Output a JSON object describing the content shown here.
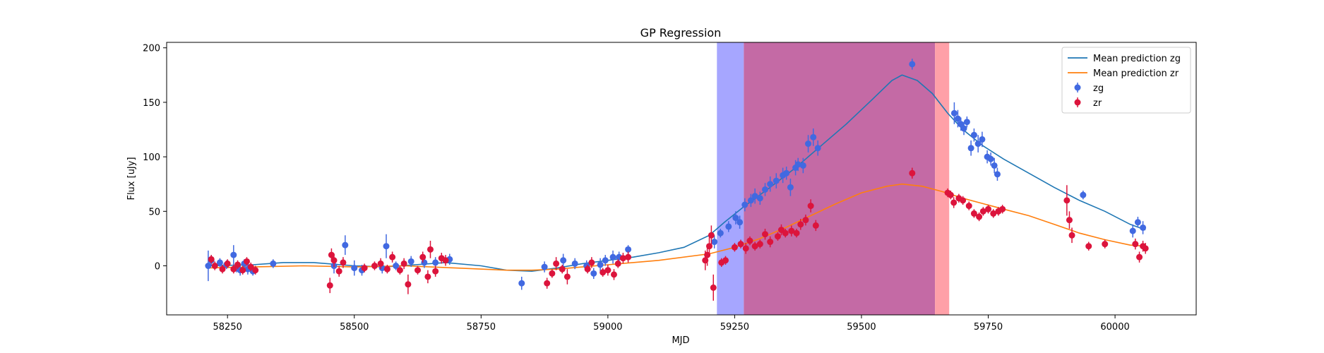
{
  "chart_data": {
    "type": "scatter",
    "title": "GP Regression",
    "xlabel": "MJD",
    "ylabel": "Flux [uJy]",
    "xlim": [
      58130,
      60160
    ],
    "ylim": [
      -45,
      205
    ],
    "xticks": [
      58250,
      58500,
      58750,
      59000,
      59250,
      59500,
      59750,
      60000
    ],
    "yticks": [
      0,
      50,
      100,
      150,
      200
    ],
    "grid": false,
    "legend_position": "top-right",
    "colors": {
      "zg_points": "#4169e1",
      "zr_points": "#dc143c",
      "zg_mean": "#1f77b4",
      "zr_mean": "#ff7f0e",
      "band_blue": "#a6a6ff",
      "band_purple": "#c46aa5",
      "band_red": "#ffa0a8"
    },
    "shaded_regions": [
      {
        "x0": 59215,
        "x1": 59268,
        "color": "#a6a6ff"
      },
      {
        "x0": 59268,
        "x1": 59645,
        "color": "#c46aa5"
      },
      {
        "x0": 59645,
        "x1": 59673,
        "color": "#ffa0a8"
      }
    ],
    "legend": [
      {
        "label": "Mean prediction zg",
        "kind": "line",
        "color": "#1f77b4"
      },
      {
        "label": "Mean prediction zr",
        "kind": "line",
        "color": "#ff7f0e"
      },
      {
        "label": "zg",
        "kind": "errorbar",
        "color": "#4169e1"
      },
      {
        "label": "zr",
        "kind": "errorbar",
        "color": "#dc143c"
      }
    ],
    "series": [
      {
        "name": "Mean prediction zg",
        "kind": "line",
        "color": "#1f77b4",
        "x": [
          58210,
          58300,
          58360,
          58420,
          58500,
          58560,
          58620,
          58680,
          58750,
          58800,
          58850,
          58900,
          58950,
          59000,
          59050,
          59100,
          59150,
          59200,
          59230,
          59270,
          59320,
          59370,
          59420,
          59470,
          59520,
          59560,
          59580,
          59610,
          59640,
          59670,
          59700,
          59740,
          59780,
          59830,
          59880,
          59930,
          59980,
          60030,
          60060
        ],
        "y": [
          0,
          1,
          3,
          3,
          0,
          -1,
          1,
          3,
          0,
          -4,
          -5,
          -2,
          2,
          5,
          8,
          12,
          17,
          28,
          40,
          55,
          72,
          90,
          110,
          130,
          152,
          170,
          175,
          170,
          158,
          140,
          125,
          110,
          98,
          85,
          72,
          60,
          50,
          38,
          33
        ]
      },
      {
        "name": "Mean prediction zr",
        "kind": "line",
        "color": "#ff7f0e",
        "x": [
          58210,
          58300,
          58400,
          58500,
          58600,
          58700,
          58800,
          58850,
          58900,
          58950,
          59000,
          59100,
          59200,
          59250,
          59300,
          59350,
          59400,
          59450,
          59500,
          59550,
          59580,
          59620,
          59660,
          59700,
          59740,
          59780,
          59830,
          59880,
          59930,
          59980,
          60030,
          60060
        ],
        "y": [
          -2,
          -1,
          0,
          -1,
          0,
          -2,
          -4,
          -4,
          -3,
          -1,
          1,
          5,
          11,
          17,
          25,
          35,
          46,
          57,
          67,
          73,
          75,
          73,
          68,
          62,
          57,
          52,
          46,
          38,
          30,
          24,
          19,
          18
        ]
      },
      {
        "name": "zg",
        "kind": "errorbar",
        "color": "#4169e1",
        "x": [
          58212,
          58218,
          58235,
          58248,
          58262,
          58268,
          58275,
          58283,
          58290,
          58300,
          58340,
          58460,
          58482,
          58500,
          58515,
          58555,
          58563,
          58582,
          58612,
          58638,
          58660,
          58688,
          58830,
          58875,
          58912,
          58935,
          58958,
          58972,
          58985,
          58995,
          59010,
          59022,
          59040,
          59210,
          59222,
          59238,
          59252,
          59260,
          59270,
          59282,
          59290,
          59300,
          59310,
          59320,
          59332,
          59345,
          59352,
          59360,
          59370,
          59375,
          59385,
          59395,
          59405,
          59414,
          59600,
          59683,
          59690,
          59696,
          59702,
          59708,
          59716,
          59722,
          59730,
          59738,
          59748,
          59755,
          59762,
          59768,
          59937,
          60035,
          60045,
          60055
        ],
        "y": [
          0,
          5,
          3,
          1,
          10,
          -2,
          -4,
          2,
          -3,
          -5,
          2,
          0,
          19,
          -2,
          -4,
          -2,
          18,
          0,
          4,
          3,
          3,
          6,
          -16,
          -1,
          5,
          2,
          0,
          -7,
          1,
          5,
          8,
          8,
          15,
          22,
          30,
          36,
          44,
          40,
          56,
          60,
          64,
          62,
          70,
          75,
          78,
          83,
          85,
          72,
          90,
          93,
          92,
          112,
          118,
          108,
          185,
          140,
          135,
          130,
          126,
          132,
          108,
          120,
          112,
          116,
          100,
          98,
          92,
          84,
          65,
          32,
          40,
          35
        ],
        "err": [
          14,
          5,
          4,
          4,
          9,
          4,
          5,
          4,
          5,
          4,
          4,
          7,
          9,
          7,
          5,
          5,
          11,
          4,
          5,
          5,
          5,
          5,
          6,
          5,
          6,
          5,
          5,
          5,
          6,
          5,
          6,
          5,
          4,
          6,
          4,
          5,
          6,
          6,
          6,
          6,
          7,
          6,
          6,
          7,
          7,
          7,
          6,
          8,
          7,
          6,
          7,
          8,
          8,
          7,
          5,
          10,
          8,
          6,
          6,
          5,
          7,
          6,
          8,
          7,
          6,
          6,
          7,
          6,
          4,
          6,
          5,
          6
        ]
      },
      {
        "name": "zr",
        "kind": "errorbar",
        "color": "#dc143c",
        "x": [
          58218,
          58225,
          58240,
          58250,
          58262,
          58270,
          58280,
          58288,
          58296,
          58305,
          58452,
          58455,
          58460,
          58470,
          58478,
          58520,
          58540,
          58552,
          58565,
          58575,
          58590,
          58598,
          58606,
          58625,
          58635,
          58645,
          58650,
          58660,
          58672,
          58680,
          58880,
          58890,
          58898,
          58910,
          58920,
          58960,
          58968,
          58990,
          59000,
          59012,
          59020,
          59030,
          59040,
          59192,
          59196,
          59200,
          59204,
          59208,
          59224,
          59232,
          59250,
          59262,
          59272,
          59280,
          59290,
          59300,
          59310,
          59320,
          59335,
          59342,
          59350,
          59362,
          59372,
          59380,
          59390,
          59400,
          59410,
          59600,
          59670,
          59676,
          59682,
          59692,
          59700,
          59712,
          59722,
          59732,
          59740,
          59750,
          59760,
          59770,
          59778,
          59905,
          59910,
          59915,
          59948,
          59980,
          60040,
          60048,
          60055,
          60060
        ],
        "y": [
          6,
          0,
          -3,
          2,
          -3,
          1,
          -4,
          4,
          -1,
          -4,
          -18,
          10,
          5,
          -5,
          3,
          -2,
          0,
          2,
          -3,
          8,
          -4,
          2,
          -17,
          -4,
          8,
          -10,
          15,
          -5,
          7,
          5,
          -16,
          -7,
          2,
          -3,
          -10,
          -3,
          3,
          -6,
          -4,
          -8,
          2,
          7,
          8,
          5,
          10,
          18,
          28,
          -20,
          3,
          5,
          17,
          20,
          16,
          23,
          18,
          20,
          29,
          22,
          27,
          33,
          30,
          32,
          30,
          38,
          42,
          55,
          37,
          85,
          67,
          65,
          58,
          62,
          60,
          55,
          48,
          45,
          50,
          52,
          48,
          50,
          52,
          60,
          42,
          28,
          18,
          20,
          20,
          8,
          18,
          16
        ],
        "err": [
          4,
          4,
          4,
          4,
          4,
          4,
          4,
          4,
          4,
          4,
          7,
          6,
          6,
          5,
          5,
          4,
          4,
          5,
          4,
          5,
          4,
          5,
          9,
          4,
          5,
          6,
          8,
          5,
          5,
          5,
          5,
          4,
          6,
          4,
          7,
          4,
          5,
          4,
          5,
          5,
          4,
          5,
          5,
          9,
          10,
          8,
          9,
          12,
          4,
          4,
          4,
          4,
          5,
          4,
          4,
          4,
          5,
          5,
          4,
          5,
          4,
          5,
          4,
          5,
          5,
          6,
          5,
          5,
          4,
          4,
          5,
          4,
          4,
          4,
          4,
          4,
          4,
          4,
          4,
          4,
          4,
          14,
          8,
          7,
          4,
          4,
          5,
          5,
          5,
          5
        ]
      }
    ]
  }
}
